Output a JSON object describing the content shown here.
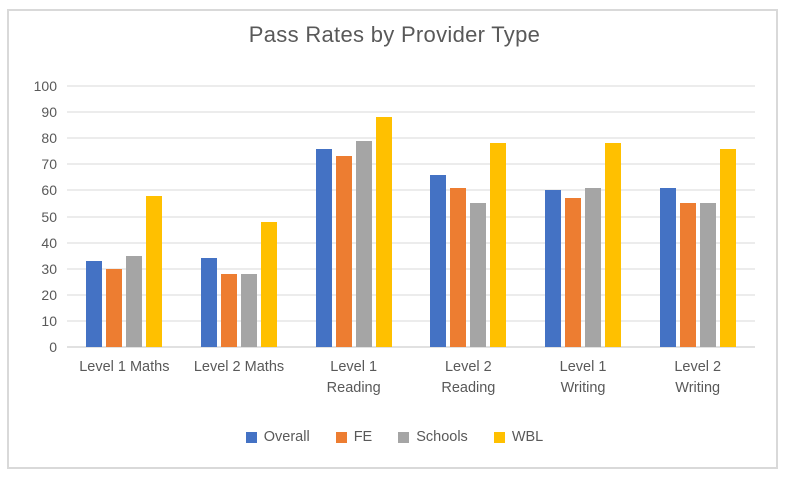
{
  "chart_data": {
    "type": "bar",
    "title": "Pass Rates by Provider Type",
    "categories": [
      "Level 1 Maths",
      "Level 2 Maths",
      "Level 1\nReading",
      "Level 2\nReading",
      "Level 1\nWriting",
      "Level 2\nWriting"
    ],
    "series": [
      {
        "name": "Overall",
        "color": "#4472C4",
        "values": [
          33,
          34,
          76,
          66,
          60,
          61
        ]
      },
      {
        "name": "FE",
        "color": "#ED7D31",
        "values": [
          30,
          28,
          73,
          61,
          57,
          55
        ]
      },
      {
        "name": "Schools",
        "color": "#A5A5A5",
        "values": [
          35,
          28,
          79,
          55,
          61,
          55
        ]
      },
      {
        "name": "WBL",
        "color": "#FFC000",
        "values": [
          58,
          48,
          88,
          78,
          78,
          76
        ]
      }
    ],
    "xlabel": "",
    "ylabel": "",
    "ylim": [
      0,
      100
    ],
    "yticks": [
      0,
      10,
      20,
      30,
      40,
      50,
      60,
      70,
      80,
      90,
      100
    ],
    "grid": true,
    "legend_position": "bottom",
    "colors": {
      "text": "#595959",
      "gridline": "#D9D9D9",
      "frame_border": "#D9D9D9"
    }
  }
}
